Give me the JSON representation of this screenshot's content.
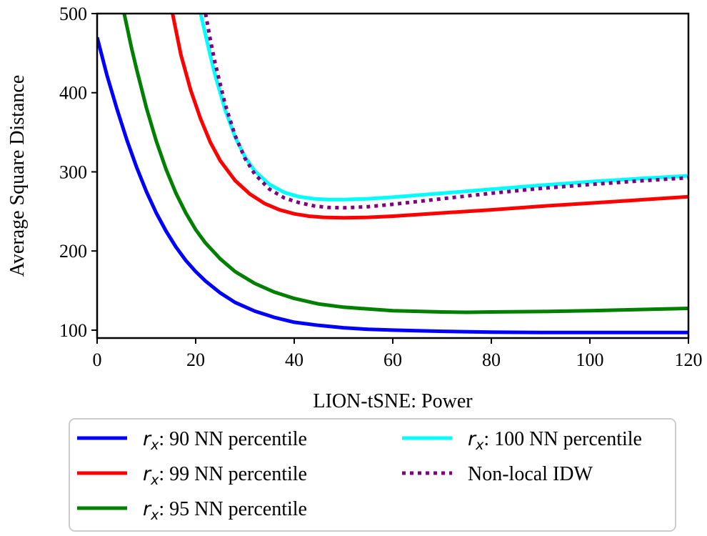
{
  "chart_data": {
    "type": "line",
    "title": "",
    "xlabel": "LION-tSNE: Power",
    "ylabel": "Average Square Distance",
    "xlim": [
      0,
      120
    ],
    "ylim": [
      90,
      500
    ],
    "xticks": [
      0,
      20,
      40,
      60,
      80,
      100,
      120
    ],
    "yticks": [
      100,
      200,
      300,
      400,
      500
    ],
    "grid": false,
    "legend_placement": "below",
    "series": [
      {
        "name": "90 NN percentile",
        "legend_prefix": "r",
        "legend_subscript": "x",
        "color": "#0000ff",
        "dash": "solid",
        "x": [
          0,
          2,
          4,
          6,
          8,
          10,
          12,
          14,
          16,
          18,
          20,
          22,
          25,
          28,
          32,
          36,
          40,
          45,
          50,
          55,
          60,
          70,
          80,
          90,
          100,
          110,
          120
        ],
        "y": [
          470,
          422,
          380,
          341,
          306,
          275,
          248,
          225,
          205,
          188,
          174,
          162,
          147,
          135,
          124,
          116,
          110,
          106,
          103,
          101,
          100,
          98.5,
          97.5,
          97,
          97,
          97,
          97
        ]
      },
      {
        "name": "95 NN percentile",
        "legend_prefix": "r",
        "legend_subscript": "x",
        "color": "#008000",
        "dash": "solid",
        "x": [
          5.5,
          7,
          8,
          10,
          12,
          14,
          16,
          18,
          20,
          22,
          25,
          28,
          32,
          36,
          40,
          45,
          50,
          60,
          70,
          75,
          80,
          90,
          100,
          110,
          120
        ],
        "y": [
          500,
          456,
          430,
          381,
          339,
          303,
          273,
          248,
          227,
          210,
          190,
          174,
          159,
          148,
          140,
          133,
          129,
          124.5,
          123,
          122.5,
          123,
          123.5,
          124.5,
          126,
          127.5
        ]
      },
      {
        "name": "99 NN percentile",
        "legend_prefix": "r",
        "legend_subscript": "x",
        "color": "#ff0000",
        "dash": "solid",
        "x": [
          15.3,
          17,
          19,
          21,
          23,
          25,
          28,
          31,
          34,
          37,
          40,
          43,
          46,
          50,
          55,
          60,
          70,
          80,
          90,
          100,
          110,
          120
        ],
        "y": [
          500,
          448,
          403,
          367,
          337,
          314,
          289,
          272,
          260,
          252,
          247,
          244,
          242.5,
          242,
          242.5,
          244,
          248,
          252,
          256.5,
          260.5,
          264.5,
          268.5
        ]
      },
      {
        "name": "100 NN percentile",
        "legend_prefix": "r",
        "legend_subscript": "x",
        "color": "#00ffff",
        "dash": "solid",
        "x": [
          21,
          22,
          23,
          24,
          26,
          28,
          30,
          32,
          35,
          38,
          41,
          44,
          47,
          50,
          55,
          60,
          70,
          80,
          90,
          100,
          110,
          120
        ],
        "y": [
          500,
          473,
          446,
          421,
          378,
          344,
          319,
          301,
          284,
          274,
          268.5,
          266,
          265,
          265,
          266,
          268,
          273,
          278,
          283,
          287.5,
          291.5,
          295
        ]
      },
      {
        "name": "Non-local IDW",
        "color": "#800080",
        "dash": "dotted",
        "x": [
          22,
          23,
          24,
          26,
          28,
          30,
          32,
          35,
          38,
          41,
          44,
          47,
          50,
          55,
          60,
          70,
          80,
          90,
          100,
          110,
          120
        ],
        "y": [
          500,
          466,
          436,
          385,
          346,
          317,
          297,
          278,
          267,
          261,
          257,
          255,
          254.5,
          256,
          259,
          266,
          273,
          279,
          284,
          288.5,
          292.5
        ]
      }
    ],
    "legend_order": [
      0,
      2,
      1,
      3,
      4
    ]
  }
}
